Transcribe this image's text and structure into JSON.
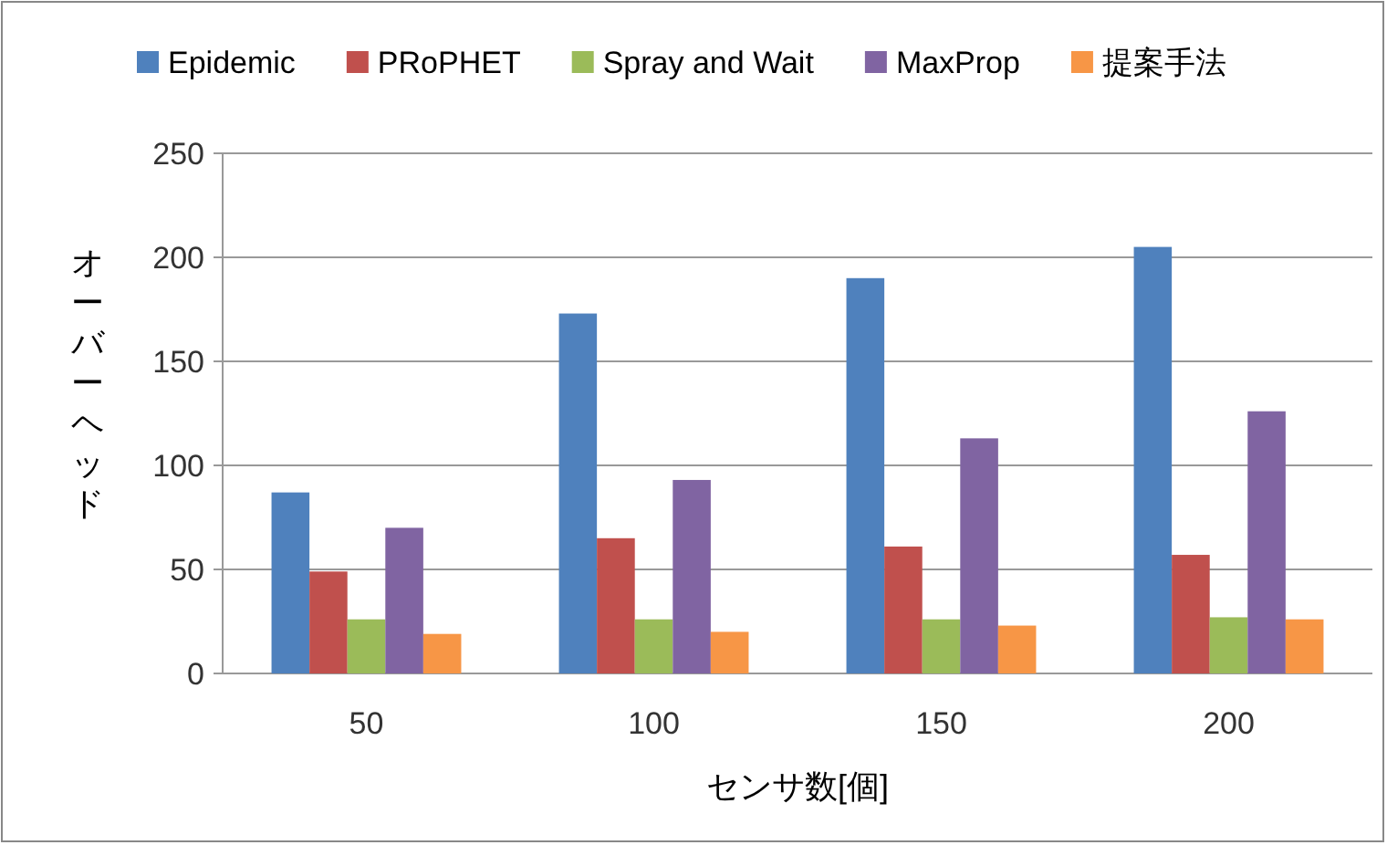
{
  "chart_data": {
    "type": "bar",
    "xlabel": "センサ数[個]",
    "ylabel": "オーバーヘッド",
    "categories": [
      "50",
      "100",
      "150",
      "200"
    ],
    "series": [
      {
        "name": "Epidemic",
        "color": "#4f81bd",
        "values": [
          87,
          173,
          190,
          205
        ]
      },
      {
        "name": "PRoPHET",
        "color": "#c0504d",
        "values": [
          49,
          65,
          61,
          57
        ]
      },
      {
        "name": "Spray and Wait",
        "color": "#9bbb59",
        "values": [
          26,
          26,
          26,
          27
        ]
      },
      {
        "name": "MaxProp",
        "color": "#8064a2",
        "values": [
          70,
          93,
          113,
          126
        ]
      },
      {
        "name": "提案手法",
        "color": "#f79646",
        "values": [
          19,
          20,
          23,
          26
        ]
      }
    ],
    "ylim": [
      0,
      250
    ],
    "yticks": [
      0,
      50,
      100,
      150,
      200,
      250
    ],
    "grid": "y",
    "legend": "top"
  }
}
